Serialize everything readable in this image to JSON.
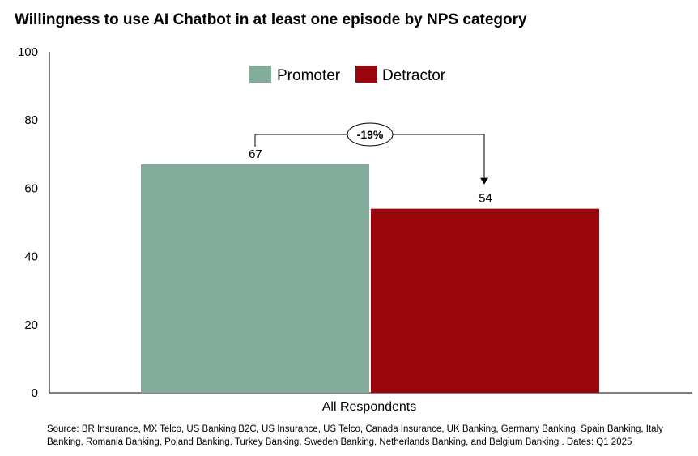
{
  "title": "Willingness to use AI Chatbot in at least one episode by NPS category",
  "source": "Source: BR Insurance, MX Telco, US Banking B2C, US Insurance, US Telco, Canada Insurance, UK Banking, Germany Banking, Spain Banking, Italy Banking, Romania Banking, Poland Banking, Turkey Banking, Sweden Banking, Netherlands Banking, and Belgium Banking . Dates: Q1 2025",
  "chart_data": {
    "type": "bar",
    "categories": [
      "All Respondents"
    ],
    "series": [
      {
        "name": "Promoter",
        "values": [
          67
        ],
        "color": "#84ac9a"
      },
      {
        "name": "Detractor",
        "values": [
          54
        ],
        "color": "#9b050c"
      }
    ],
    "ylim": [
      0,
      100
    ],
    "yticks": [
      "0",
      "20",
      "40",
      "60",
      "80",
      "100"
    ],
    "grid": false,
    "legend": "top-center",
    "annotation": {
      "text": "-19%",
      "from": "Promoter",
      "to": "Detractor"
    }
  }
}
